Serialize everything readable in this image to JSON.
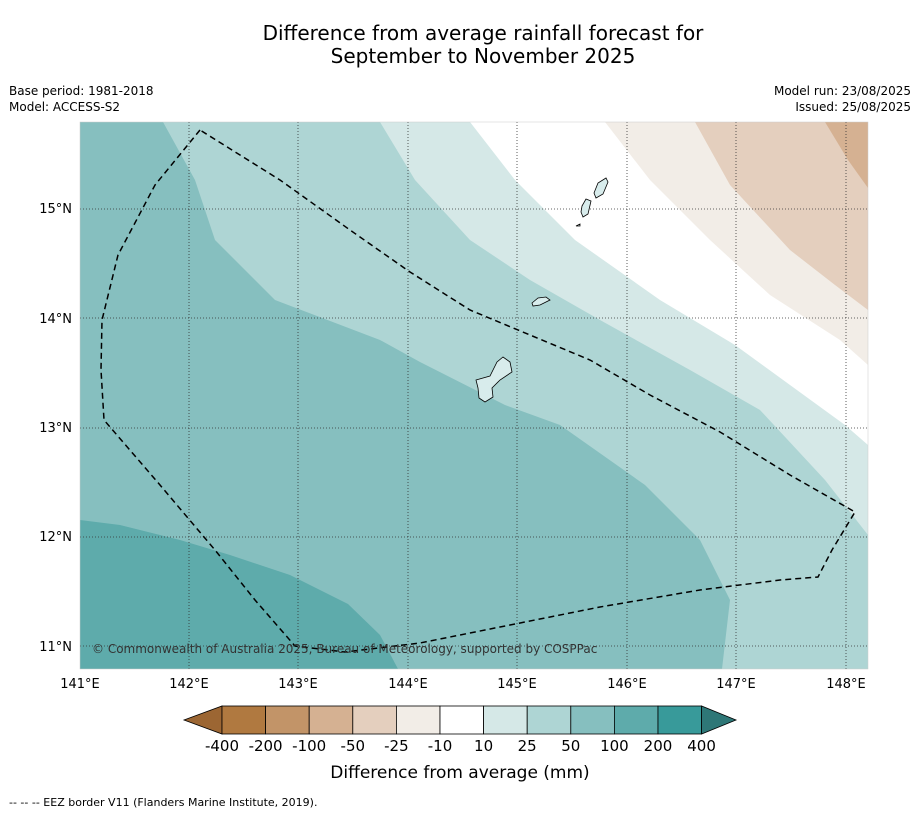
{
  "title_line1": "Difference from average rainfall forecast for",
  "title_line2": "September to November 2025",
  "info": {
    "base_period": "Base period: 1981-2018",
    "model": "Model: ACCESS-S2",
    "model_run": "Model run: 23/08/2025",
    "issued": "Issued: 25/08/2025"
  },
  "map": {
    "lat_labels": [
      "15°N",
      "14°N",
      "13°N",
      "12°N",
      "11°N"
    ],
    "lon_labels": [
      "141°E",
      "142°E",
      "143°E",
      "144°E",
      "145°E",
      "146°E",
      "147°E",
      "148°E"
    ],
    "copyright": "© Commonwealth of Australia 2025, Bureau of Meteorology, supported by COSPPac"
  },
  "legend": {
    "title": "Difference from average (mm)",
    "tick_labels": [
      "-400",
      "-200",
      "-100",
      "-50",
      "-25",
      "-10",
      "10",
      "25",
      "50",
      "100",
      "200",
      "400"
    ],
    "colors": {
      "below_minus_400": "#9c6633",
      "minus_400_to_minus_200": "#b07940",
      "minus_200_to_minus_100": "#c29468",
      "minus_100_to_minus_50": "#d5b192",
      "minus_50_to_minus_25": "#e4cfbe",
      "minus_25_to_minus_10": "#f2ede7",
      "minus_10_to_10": "#ffffff",
      "10_to_25": "#d5e8e7",
      "25_to_50": "#aed5d4",
      "50_to_100": "#86bfbf",
      "100_to_200": "#5eabab",
      "200_to_400": "#389a9a",
      "above_400": "#2e7777"
    }
  },
  "footer": "--  --  -- EEZ border V11 (Flanders Marine Institute, 2019)."
}
